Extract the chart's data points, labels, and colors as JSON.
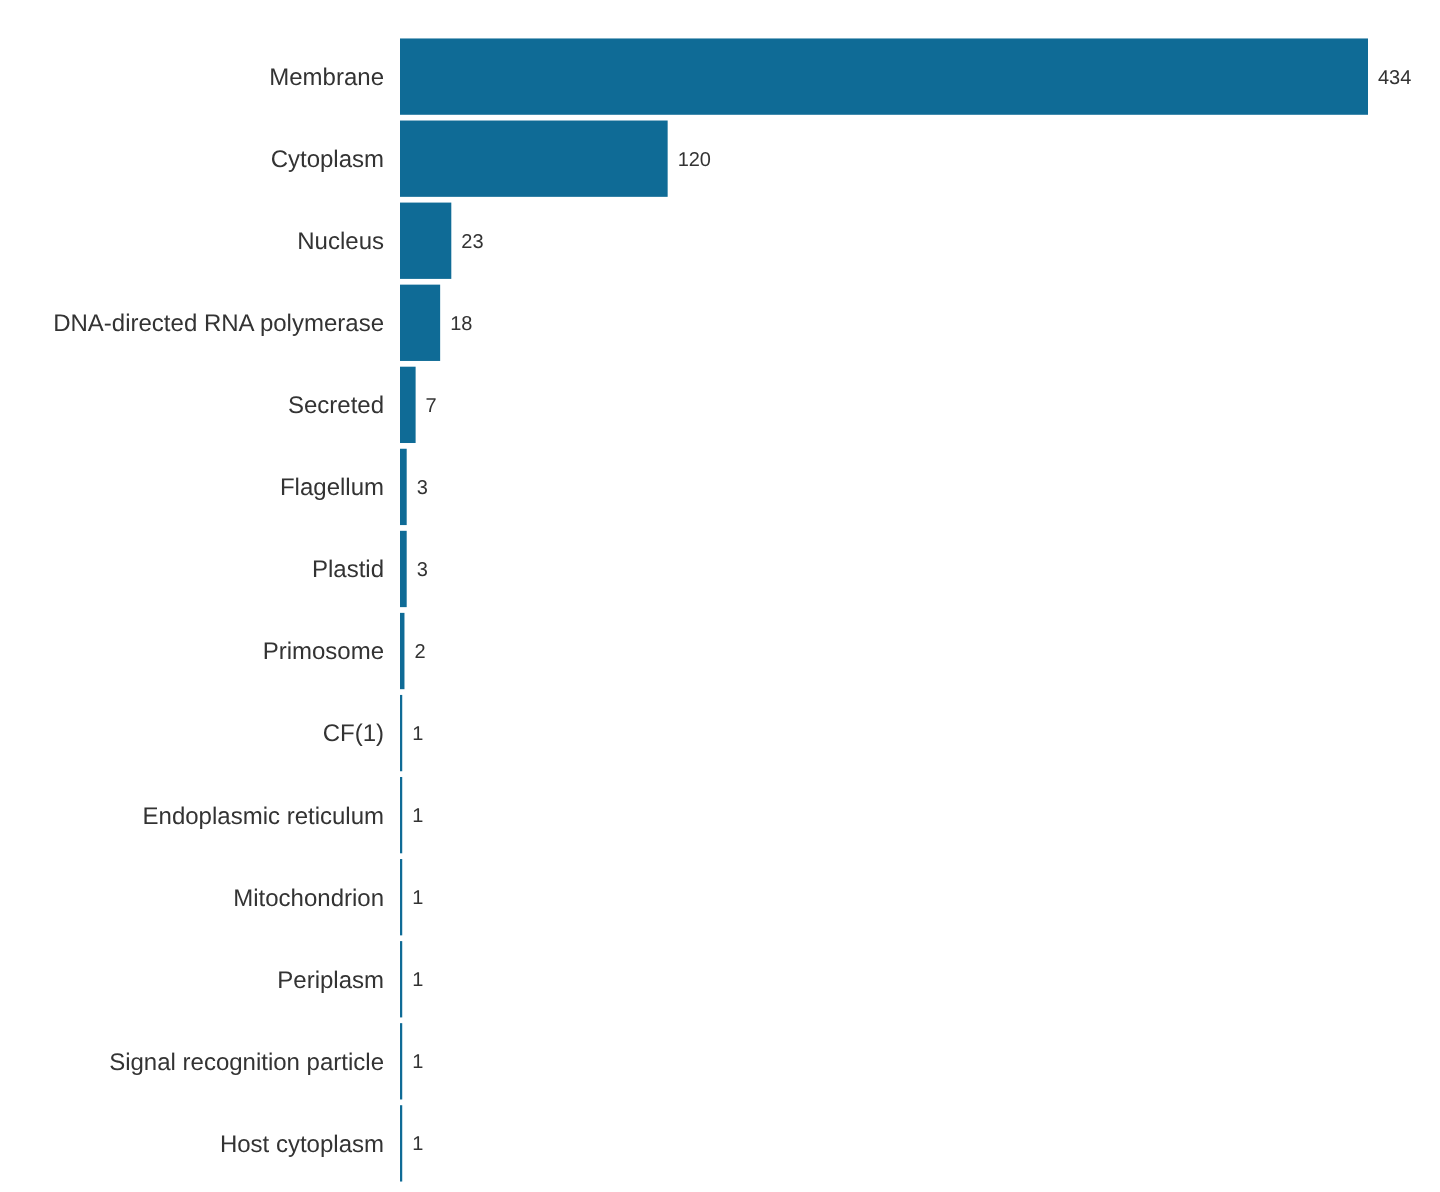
{
  "chart_data": {
    "type": "bar",
    "orientation": "horizontal",
    "categories": [
      "Membrane",
      "Cytoplasm",
      "Nucleus",
      "DNA-directed RNA polymerase",
      "Secreted",
      "Flagellum",
      "Plastid",
      "Primosome",
      "CF(1)",
      "Endoplasmic reticulum",
      "Mitochondrion",
      "Periplasm",
      "Signal recognition particle",
      "Host cytoplasm"
    ],
    "values": [
      434,
      120,
      23,
      18,
      7,
      3,
      3,
      2,
      1,
      1,
      1,
      1,
      1,
      1
    ],
    "color": "#0f6b96",
    "data_labels": true
  }
}
